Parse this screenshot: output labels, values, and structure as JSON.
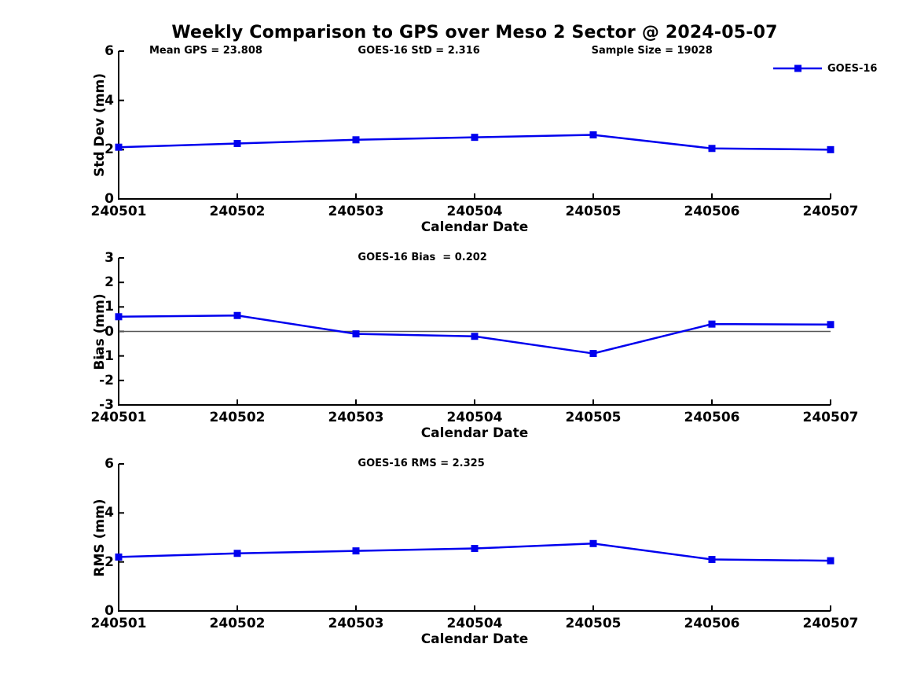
{
  "title": "Weekly Comparison to GPS over Meso 2 Sector @ 2024-05-07",
  "legend": {
    "label": "GOES-16"
  },
  "colors": {
    "line": "#0000EE",
    "zero_line": "#555555",
    "axis": "#000000",
    "text": "#000000",
    "background": "#FFFFFF"
  },
  "chart_data": [
    {
      "type": "line",
      "title": "",
      "categories": [
        "240501",
        "240502",
        "240503",
        "240504",
        "240505",
        "240506",
        "240507"
      ],
      "series": [
        {
          "name": "GOES-16",
          "values": [
            2.1,
            2.25,
            2.4,
            2.5,
            2.6,
            2.05,
            2.0
          ]
        }
      ],
      "xlabel": "Calendar Date",
      "ylabel": "Std Dev (mm)",
      "ylim": [
        0,
        6
      ],
      "yticks": [
        0,
        2,
        4,
        6
      ],
      "grid": false,
      "zero_line": false,
      "legend_position": "top-right",
      "annotations": [
        "Mean GPS = 23.808",
        "GOES-16 StD = 2.316",
        "Sample Size = 19028"
      ]
    },
    {
      "type": "line",
      "title": "",
      "categories": [
        "240501",
        "240502",
        "240503",
        "240504",
        "240505",
        "240506",
        "240507"
      ],
      "series": [
        {
          "name": "GOES-16",
          "values": [
            0.6,
            0.65,
            -0.1,
            -0.2,
            -0.9,
            0.3,
            0.28
          ]
        }
      ],
      "xlabel": "Calendar Date",
      "ylabel": "Bias (mm)",
      "ylim": [
        -3,
        3
      ],
      "yticks": [
        -3,
        -2,
        -1,
        0,
        1,
        2,
        3
      ],
      "grid": false,
      "zero_line": true,
      "annotations": [
        "GOES-16 Bias  = 0.202"
      ]
    },
    {
      "type": "line",
      "title": "",
      "categories": [
        "240501",
        "240502",
        "240503",
        "240504",
        "240505",
        "240506",
        "240507"
      ],
      "series": [
        {
          "name": "GOES-16",
          "values": [
            2.2,
            2.35,
            2.45,
            2.55,
            2.75,
            2.1,
            2.05
          ]
        }
      ],
      "xlabel": "Calendar Date",
      "ylabel": "RMS (mm)",
      "ylim": [
        0,
        6
      ],
      "yticks": [
        0,
        2,
        4,
        6
      ],
      "grid": false,
      "zero_line": false,
      "annotations": [
        "GOES-16 RMS = 2.325"
      ]
    }
  ]
}
